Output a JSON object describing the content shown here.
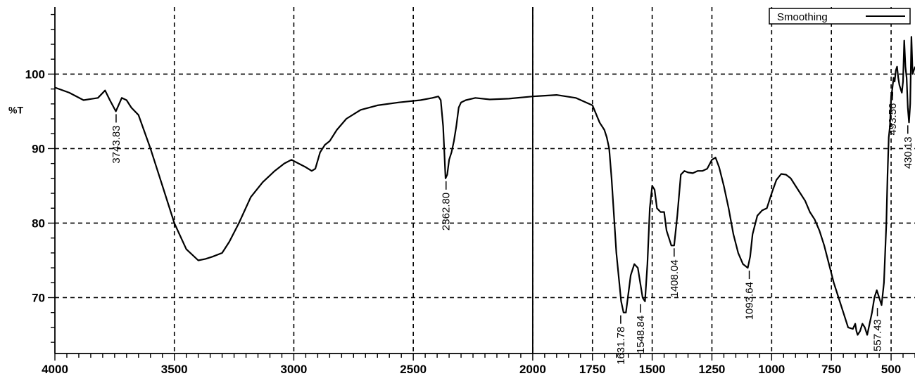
{
  "chart_data": {
    "type": "line",
    "ylabel": "%T",
    "xlim": [
      4000,
      400
    ],
    "ylim": [
      62.5,
      109
    ],
    "x_ticks": [
      4000,
      3500,
      3000,
      2500,
      2000,
      1750,
      1500,
      1250,
      1000,
      750,
      500
    ],
    "x_tick_labels": [
      "4000",
      "3500",
      "3000",
      "2500",
      "2000",
      "1750",
      "1500",
      "1250",
      "1000",
      "750",
      "500"
    ],
    "y_ticks": [
      70,
      80,
      90,
      100
    ],
    "y_tick_labels": [
      "70",
      "80",
      "90",
      "100"
    ],
    "grid": true,
    "legend": {
      "position": "top-right",
      "entries": [
        "Smoothing"
      ]
    },
    "series": [
      {
        "name": "Smoothing",
        "color": "#000000",
        "x": [
          4000,
          3940,
          3880,
          3820,
          3790,
          3770,
          3745,
          3720,
          3700,
          3680,
          3650,
          3600,
          3550,
          3500,
          3450,
          3400,
          3370,
          3340,
          3300,
          3270,
          3230,
          3180,
          3130,
          3080,
          3040,
          3010,
          2980,
          2950,
          2925,
          2910,
          2890,
          2870,
          2850,
          2820,
          2780,
          2720,
          2650,
          2560,
          2470,
          2420,
          2395,
          2385,
          2375,
          2365,
          2358,
          2350,
          2340,
          2330,
          2320,
          2310,
          2300,
          2280,
          2240,
          2180,
          2100,
          2000,
          1900,
          1820,
          1750,
          1720,
          1700,
          1690,
          1680,
          1670,
          1650,
          1630,
          1620,
          1610,
          1600,
          1590,
          1575,
          1560,
          1550,
          1540,
          1530,
          1520,
          1510,
          1500,
          1490,
          1480,
          1465,
          1450,
          1440,
          1430,
          1420,
          1408,
          1395,
          1380,
          1365,
          1350,
          1330,
          1310,
          1290,
          1270,
          1250,
          1235,
          1220,
          1200,
          1180,
          1160,
          1140,
          1120,
          1100,
          1090,
          1080,
          1060,
          1040,
          1020,
          1000,
          980,
          960,
          940,
          920,
          900,
          880,
          860,
          840,
          820,
          800,
          780,
          760,
          740,
          720,
          700,
          680,
          660,
          650,
          645,
          640,
          630,
          620,
          610,
          600,
          590,
          580,
          570,
          560,
          550,
          540,
          530,
          520,
          515,
          510,
          505,
          500,
          495,
          490,
          485,
          480,
          475,
          470,
          465,
          460,
          455,
          450,
          445,
          440,
          435,
          430,
          425,
          420,
          415,
          410,
          400
        ],
        "y": [
          98.2,
          97.5,
          96.5,
          96.8,
          97.8,
          96.5,
          95.0,
          96.8,
          96.5,
          95.5,
          94.5,
          90.0,
          85.0,
          80.0,
          76.5,
          75.0,
          75.2,
          75.5,
          76.0,
          77.5,
          80.0,
          83.5,
          85.5,
          87.0,
          88.0,
          88.5,
          88.0,
          87.5,
          87.0,
          87.3,
          89.5,
          90.5,
          91.0,
          92.5,
          94.0,
          95.2,
          95.8,
          96.2,
          96.5,
          96.8,
          97.0,
          96.5,
          93.0,
          86.0,
          86.5,
          88.5,
          89.5,
          91.0,
          93.0,
          95.5,
          96.2,
          96.5,
          96.8,
          96.6,
          96.7,
          97.0,
          97.2,
          96.8,
          95.8,
          93.5,
          92.5,
          91.5,
          90.0,
          86.0,
          76.0,
          69.5,
          68.0,
          68.0,
          70.5,
          73.0,
          74.5,
          74.0,
          72.0,
          70.0,
          69.5,
          74.5,
          82.0,
          85.0,
          84.5,
          82.0,
          81.5,
          81.5,
          79.0,
          78.0,
          77.0,
          77.0,
          81.0,
          86.5,
          87.0,
          86.8,
          86.7,
          87.0,
          87.0,
          87.3,
          88.5,
          88.8,
          87.5,
          85.0,
          82.0,
          78.5,
          76.0,
          74.5,
          74.0,
          75.5,
          78.5,
          81.0,
          81.7,
          82.0,
          84.0,
          85.8,
          86.6,
          86.5,
          86.0,
          85.0,
          84.0,
          83.0,
          81.5,
          80.5,
          79.0,
          77.0,
          74.5,
          72.0,
          70.0,
          68.0,
          66.0,
          65.8,
          66.5,
          65.5,
          65.0,
          65.5,
          66.5,
          66.0,
          65.0,
          66.5,
          68.0,
          70.0,
          71.0,
          70.0,
          69.0,
          72.0,
          80.0,
          86.5,
          91.5,
          93.0,
          97.0,
          98.0,
          99.5,
          99.0,
          100.5,
          101.0,
          99.5,
          98.5,
          98.0,
          97.5,
          99.0,
          104.5,
          101.0,
          99.5,
          95.5,
          93.5,
          96.0,
          105.0,
          100.0,
          101.0
        ]
      }
    ],
    "peak_labels": [
      {
        "x": 3743.83,
        "y": 95.0,
        "text": "3743.83"
      },
      {
        "x": 2362.8,
        "y": 86.0,
        "text": "2362.80"
      },
      {
        "x": 1631.78,
        "y": 68.0,
        "text": "1631.78"
      },
      {
        "x": 1548.84,
        "y": 69.5,
        "text": "1548.84"
      },
      {
        "x": 1408.04,
        "y": 77.0,
        "text": "1408.04"
      },
      {
        "x": 1093.64,
        "y": 74.0,
        "text": "1093.64"
      },
      {
        "x": 557.43,
        "y": 69.0,
        "text": "557.43"
      },
      {
        "x": 493.56,
        "y": 98.0,
        "text": "493.56"
      },
      {
        "x": 430.13,
        "y": 93.5,
        "text": "430.13"
      }
    ],
    "marker_line_x": 2000
  }
}
